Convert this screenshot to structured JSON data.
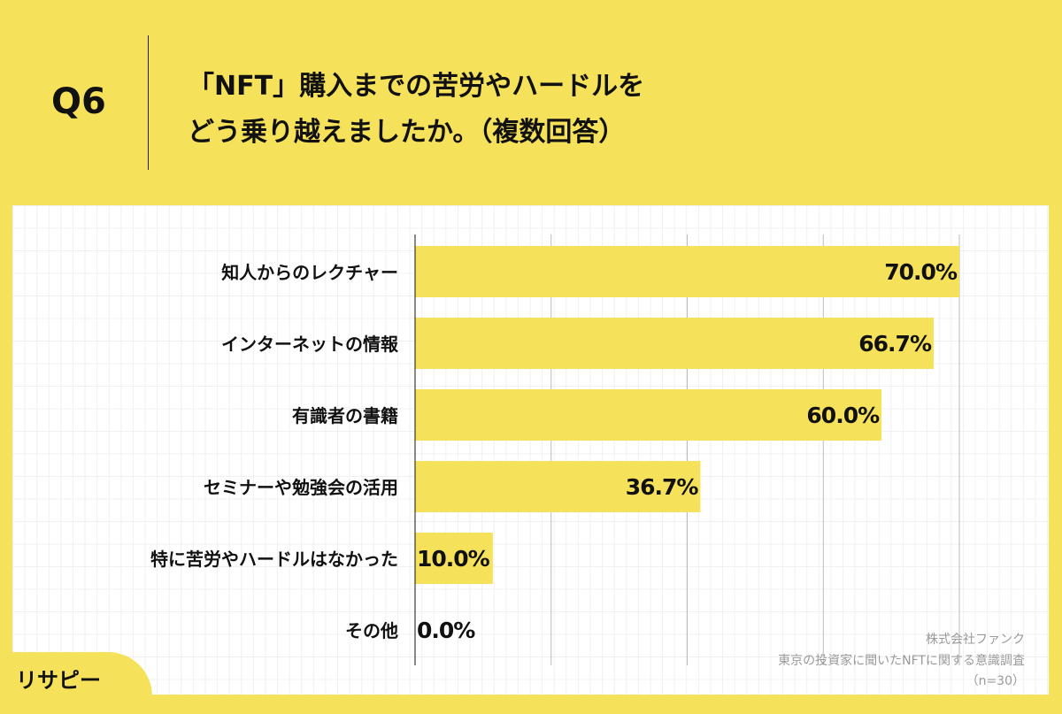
{
  "header": {
    "question": "Q6",
    "title_line1": "「NFT」購入までの苦労やハードルを",
    "title_line2": "どう乗り越えましたか。（複数回答）"
  },
  "chart_data": {
    "type": "bar",
    "orientation": "horizontal",
    "categories": [
      "知人からのレクチャー",
      "インターネットの情報",
      "有識者の書籍",
      "セミナーや勉強会の活用",
      "特に苦労やハードルはなかった",
      "その他"
    ],
    "values": [
      70.0,
      66.7,
      60.0,
      36.7,
      10.0,
      0.0
    ],
    "labels": [
      "70.0%",
      "66.7%",
      "60.0%",
      "36.7%",
      "10.0%",
      "0.0%"
    ],
    "xlim": [
      0,
      70
    ],
    "grid": true,
    "bar_color": "#f6e15a"
  },
  "footer": {
    "company": "株式会社ファンク",
    "survey": "東京の投資家に聞いたNFTに関する意識調査",
    "n": "（n=30）",
    "logo": "リサピー"
  }
}
